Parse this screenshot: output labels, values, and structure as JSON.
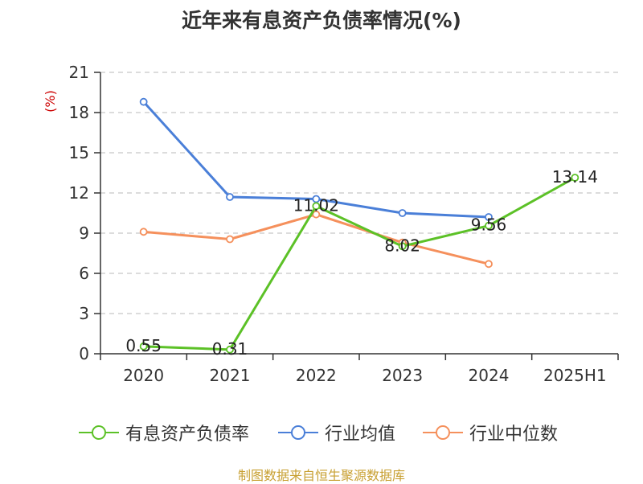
{
  "title": "近年来有息资产负债率情况(%)",
  "source": "制图数据来自恒生聚源数据库",
  "chart_data": {
    "type": "line",
    "title": "近年来有息资产负债率情况(%)",
    "unit": "(%)",
    "categories": [
      "2020",
      "2021",
      "2022",
      "2023",
      "2024",
      "2025H1"
    ],
    "ylim": [
      0,
      21
    ],
    "yticks": [
      0,
      3,
      6,
      9,
      12,
      15,
      18,
      21
    ],
    "grid": true,
    "legend_position": "bottom",
    "series": [
      {
        "name": "有息资产负债率",
        "color": "#5cc127",
        "values": [
          0.55,
          0.31,
          11.02,
          8.02,
          9.56,
          13.14
        ],
        "data_labels": [
          "0.55",
          "0.31",
          "11.02",
          "8.02",
          "9.56",
          "13.14"
        ]
      },
      {
        "name": "行业均值",
        "color": "#4a7fd8",
        "values": [
          18.8,
          11.7,
          11.55,
          10.5,
          10.2,
          null
        ]
      },
      {
        "name": "行业中位数",
        "color": "#f5905c",
        "values": [
          9.1,
          8.55,
          10.4,
          8.3,
          6.7,
          null
        ]
      }
    ]
  }
}
